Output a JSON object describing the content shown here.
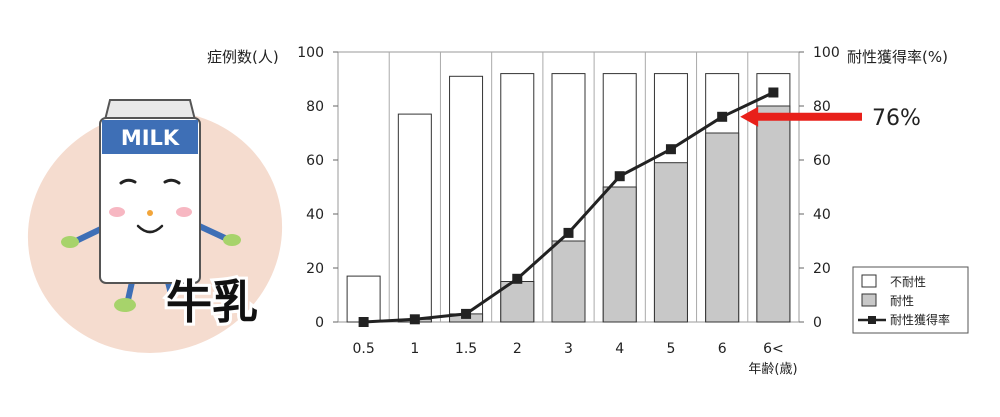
{
  "illustration": {
    "carton_text": "MILK",
    "caption": "牛乳",
    "background_color": "#f5dccf",
    "carton_color": "#3e6fb6"
  },
  "chart_data": {
    "type": "bar",
    "categories": [
      "0.5",
      "1",
      "1.5",
      "2",
      "3",
      "4",
      "5",
      "6",
      "6<"
    ],
    "series": [
      {
        "name": "不耐性",
        "type": "bar",
        "values": [
          17,
          77,
          91,
          92,
          92,
          92,
          92,
          92,
          92
        ],
        "color": "#ffffff"
      },
      {
        "name": "耐性",
        "type": "bar",
        "values": [
          0,
          1,
          3,
          15,
          30,
          50,
          59,
          70,
          80
        ],
        "color": "#c8c8c8"
      },
      {
        "name": "耐性獲得率",
        "type": "line",
        "axis": "right",
        "values": [
          0,
          1,
          3,
          16,
          33,
          54,
          64,
          76,
          85
        ],
        "color": "#222222"
      }
    ],
    "ylabel": "症例数(人)",
    "y2label": "耐性獲得率(%)",
    "xlabel": "年齢(歳)",
    "ylim": [
      0,
      100
    ],
    "y2lim": [
      0,
      100
    ],
    "yticks": [
      "0",
      "20",
      "40",
      "60",
      "80",
      "100"
    ],
    "y2ticks": [
      "0",
      "20",
      "40",
      "60",
      "80",
      "100"
    ],
    "legend_position": "bottom-right",
    "annotation": {
      "text": "76%",
      "category": "6",
      "color": "#e8201a"
    }
  }
}
